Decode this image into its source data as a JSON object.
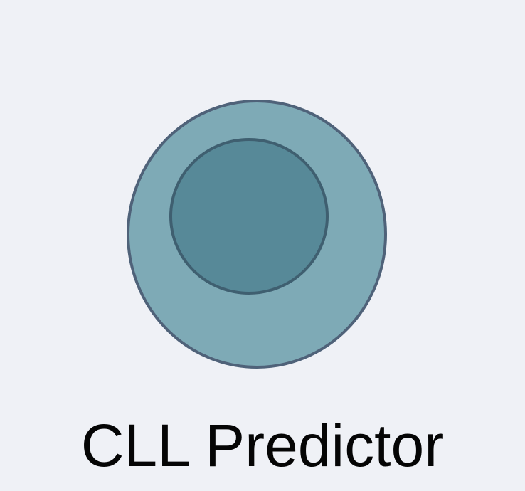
{
  "app": {
    "title": "CLL Predictor"
  },
  "logo": {
    "icon": "cell-icon",
    "colors": {
      "background": "#eff1f6",
      "cell_fill": "#7eaab6",
      "cell_outline": "#4f6279",
      "nucleus_fill": "#578998",
      "nucleus_outline": "#3f5f70"
    }
  }
}
